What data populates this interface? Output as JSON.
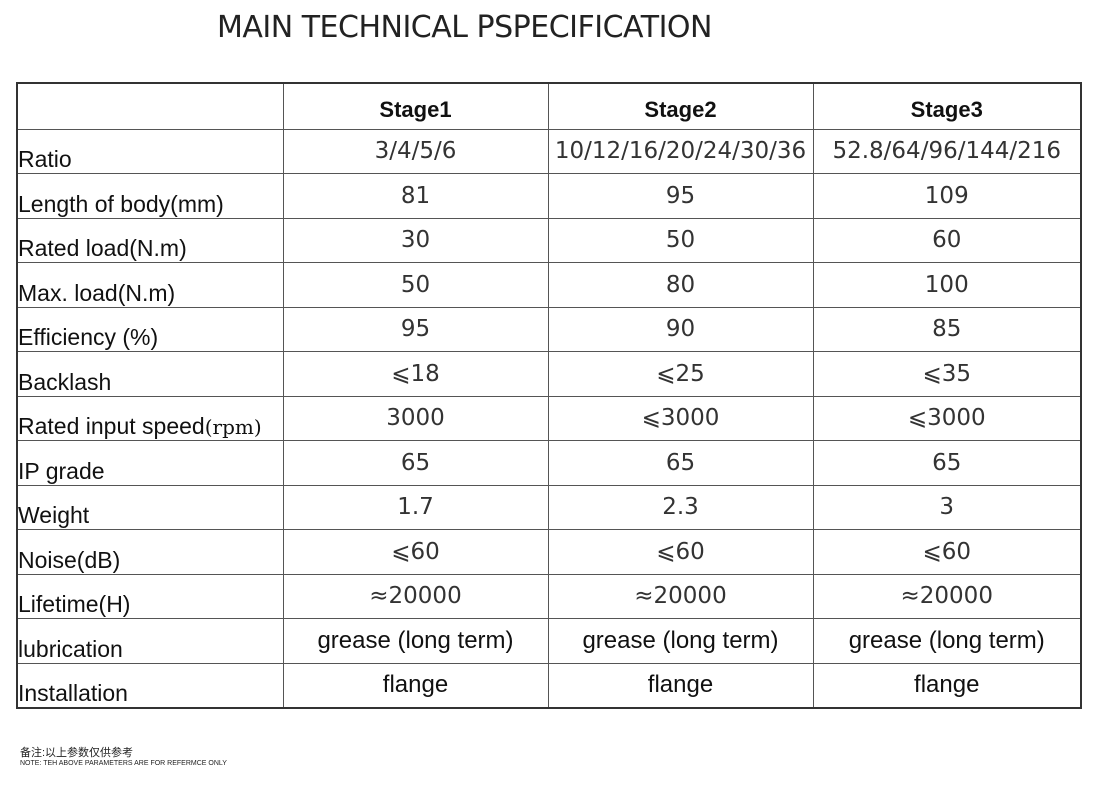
{
  "title": "MAIN TECHNICAL  PSPECIFICATION",
  "table": {
    "headers": [
      "",
      "Stage1",
      "Stage2",
      "Stage3"
    ],
    "rows": [
      {
        "label": "Ratio",
        "values": [
          "3/4/5/6",
          "10/12/16/20/24/30/36",
          "52.8/64/96/144/216"
        ]
      },
      {
        "label": "Length of body(mm)",
        "values": [
          "81",
          "95",
          "109"
        ]
      },
      {
        "label": "Rated load(N.m)",
        "values": [
          "30",
          "50",
          "60"
        ]
      },
      {
        "label": "Max. load(N.m)",
        "values": [
          "50",
          "80",
          "100"
        ]
      },
      {
        "label": "Efficiency (%)",
        "values": [
          "95",
          "90",
          "85"
        ]
      },
      {
        "label": "Backlash",
        "values": [
          "⩽18",
          "⩽25",
          "⩽35"
        ]
      },
      {
        "label": "Rated input speed",
        "label_suffix": "(rpm)",
        "values": [
          "3000",
          "⩽3000",
          "⩽3000"
        ]
      },
      {
        "label": "IP grade",
        "values": [
          "65",
          "65",
          "65"
        ]
      },
      {
        "label": "Weight",
        "values": [
          "1.7",
          "2.3",
          "3"
        ]
      },
      {
        "label": "Noise(dB)",
        "values": [
          "⩽60",
          "⩽60",
          "⩽60"
        ]
      },
      {
        "label": "Lifetime(H)",
        "values": [
          "≈20000",
          "≈20000",
          "≈20000"
        ]
      },
      {
        "label": "lubrication",
        "values": [
          "grease (long term)",
          "grease (long term)",
          "grease (long term)"
        ]
      },
      {
        "label": "Installation",
        "values": [
          "flange",
          "flange",
          "flange"
        ]
      }
    ]
  },
  "note_cn": "备注:以上参数仅供参考",
  "note_en": "NOTE:  TEH ABOVE PARAMETERS ARE FOR REFERMCE ONLY"
}
